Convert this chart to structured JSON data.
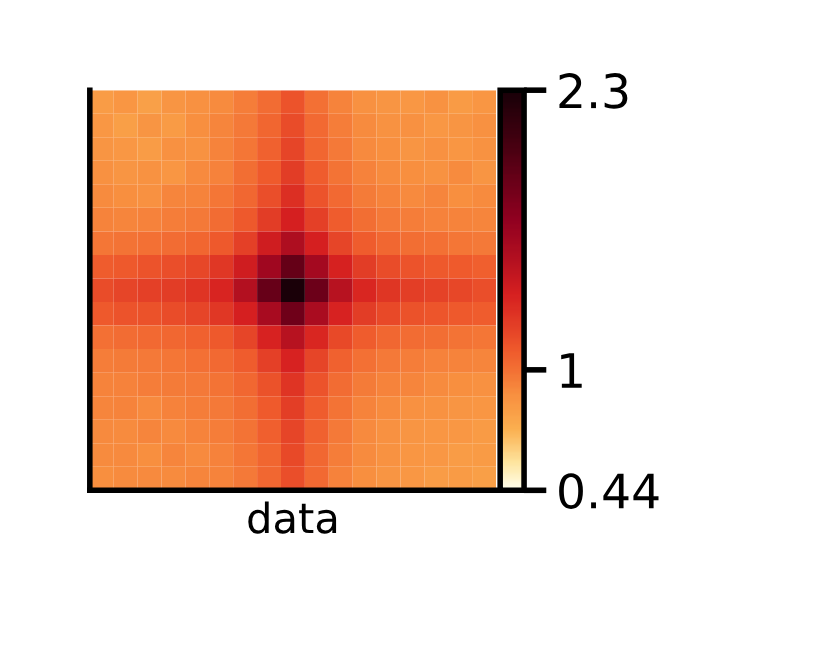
{
  "chart_data": {
    "type": "heatmap",
    "xlabel": "data",
    "categories": [
      null,
      null,
      null,
      null,
      null,
      null,
      null,
      null,
      null,
      null,
      null,
      null,
      null,
      null,
      null,
      null,
      null
    ],
    "y_categories": [
      null,
      null,
      null,
      null,
      null,
      null,
      null,
      null,
      null,
      null,
      null,
      null,
      null,
      null,
      null,
      null,
      null
    ],
    "cells": [
      [
        0.82,
        0.85,
        0.8,
        0.86,
        0.88,
        0.9,
        0.95,
        1.02,
        1.12,
        1.0,
        0.93,
        0.88,
        0.86,
        0.84,
        0.87,
        0.83,
        0.85
      ],
      [
        0.84,
        0.81,
        0.86,
        0.83,
        0.89,
        0.92,
        0.97,
        1.05,
        1.15,
        1.03,
        0.95,
        0.9,
        0.87,
        0.88,
        0.84,
        0.86,
        0.88
      ],
      [
        0.86,
        0.84,
        0.82,
        0.88,
        0.87,
        0.93,
        0.98,
        1.06,
        1.18,
        1.05,
        0.97,
        0.91,
        0.89,
        0.86,
        0.88,
        0.85,
        0.87
      ],
      [
        0.88,
        0.86,
        0.87,
        0.85,
        0.91,
        0.94,
        1.01,
        1.09,
        1.22,
        1.08,
        0.99,
        0.94,
        0.9,
        0.89,
        0.87,
        0.9,
        0.86
      ],
      [
        0.9,
        0.89,
        0.88,
        0.92,
        0.93,
        0.98,
        1.04,
        1.14,
        1.28,
        1.12,
        1.03,
        0.96,
        0.93,
        0.91,
        0.92,
        0.89,
        0.9
      ],
      [
        0.93,
        0.92,
        0.94,
        0.95,
        0.97,
        1.02,
        1.1,
        1.22,
        1.36,
        1.2,
        1.08,
        1.01,
        0.97,
        0.95,
        0.94,
        0.93,
        0.92
      ],
      [
        0.98,
        0.99,
        1.0,
        1.02,
        1.05,
        1.1,
        1.2,
        1.38,
        1.55,
        1.36,
        1.18,
        1.08,
        1.04,
        1.01,
        1.0,
        0.98,
        0.97
      ],
      [
        1.08,
        1.1,
        1.12,
        1.14,
        1.17,
        1.24,
        1.38,
        1.62,
        1.9,
        1.6,
        1.35,
        1.22,
        1.15,
        1.12,
        1.1,
        1.09,
        1.07
      ],
      [
        1.15,
        1.18,
        1.2,
        1.22,
        1.26,
        1.33,
        1.52,
        1.88,
        2.3,
        1.86,
        1.5,
        1.32,
        1.25,
        1.21,
        1.19,
        1.17,
        1.14
      ],
      [
        1.1,
        1.12,
        1.13,
        1.15,
        1.18,
        1.24,
        1.36,
        1.58,
        1.85,
        1.57,
        1.34,
        1.22,
        1.16,
        1.13,
        1.11,
        1.1,
        1.08
      ],
      [
        1.0,
        1.02,
        1.03,
        1.04,
        1.06,
        1.1,
        1.18,
        1.34,
        1.5,
        1.32,
        1.16,
        1.08,
        1.04,
        1.02,
        1.01,
        0.99,
        0.98
      ],
      [
        0.95,
        0.96,
        0.97,
        0.98,
        1.0,
        1.03,
        1.08,
        1.2,
        1.34,
        1.18,
        1.06,
        1.0,
        0.97,
        0.95,
        0.94,
        0.93,
        0.92
      ],
      [
        0.93,
        0.94,
        0.95,
        0.96,
        0.97,
        0.99,
        1.04,
        1.13,
        1.26,
        1.12,
        1.02,
        0.96,
        0.93,
        0.92,
        0.9,
        0.89,
        0.88
      ],
      [
        0.92,
        0.93,
        0.91,
        0.94,
        0.95,
        0.97,
        1.01,
        1.09,
        1.21,
        1.08,
        0.99,
        0.93,
        0.9,
        0.88,
        0.87,
        0.86,
        0.85
      ],
      [
        0.91,
        0.9,
        0.92,
        0.91,
        0.93,
        0.95,
        0.99,
        1.07,
        1.18,
        1.06,
        0.97,
        0.91,
        0.88,
        0.86,
        0.85,
        0.84,
        0.83
      ],
      [
        0.9,
        0.91,
        0.89,
        0.92,
        0.91,
        0.94,
        0.98,
        1.05,
        1.16,
        1.04,
        0.95,
        0.9,
        0.87,
        0.85,
        0.84,
        0.82,
        0.83
      ],
      [
        0.89,
        0.9,
        0.91,
        0.9,
        0.92,
        0.93,
        0.97,
        1.04,
        1.14,
        1.03,
        0.94,
        0.89,
        0.86,
        0.84,
        0.82,
        0.83,
        0.81
      ]
    ],
    "clim": [
      0.44,
      2.3
    ],
    "cticks": [
      0.44,
      1,
      2.3
    ]
  }
}
